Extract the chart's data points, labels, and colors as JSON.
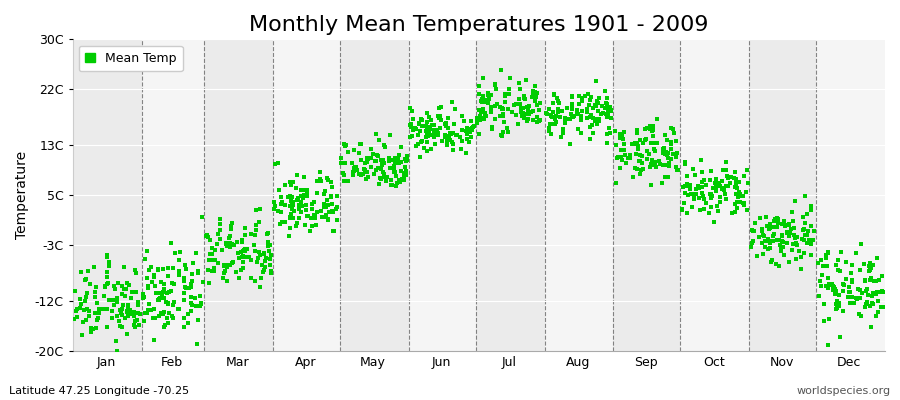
{
  "title": "Monthly Mean Temperatures 1901 - 2009",
  "ylabel": "Temperature",
  "xlabel_bottom_left": "Latitude 47.25 Longitude -70.25",
  "xlabel_bottom_right": "worldspecies.org",
  "legend_label": "Mean Temp",
  "dot_color": "#00cc00",
  "band_colors": [
    "#ebebeb",
    "#f5f5f5"
  ],
  "ylim": [
    -20,
    30
  ],
  "yticks": [
    -20,
    -12,
    -3,
    5,
    13,
    22,
    30
  ],
  "ytick_labels": [
    "-20C",
    "-12C",
    "-3C",
    "5C",
    "13C",
    "22C",
    "30C"
  ],
  "months": [
    "Jan",
    "Feb",
    "Mar",
    "Apr",
    "May",
    "Jun",
    "Jul",
    "Aug",
    "Sep",
    "Oct",
    "Nov",
    "Dec"
  ],
  "monthly_means": [
    -12.5,
    -11.0,
    -4.5,
    3.5,
    10.0,
    15.5,
    19.0,
    18.0,
    12.0,
    5.5,
    -1.5,
    -9.5
  ],
  "monthly_stds": [
    3.0,
    3.2,
    2.8,
    2.5,
    2.0,
    1.8,
    1.8,
    1.8,
    2.2,
    2.3,
    2.5,
    3.0
  ],
  "n_years": 109,
  "title_fontsize": 16,
  "axis_fontsize": 10,
  "tick_fontsize": 9,
  "legend_fontsize": 9,
  "dot_size": 5
}
